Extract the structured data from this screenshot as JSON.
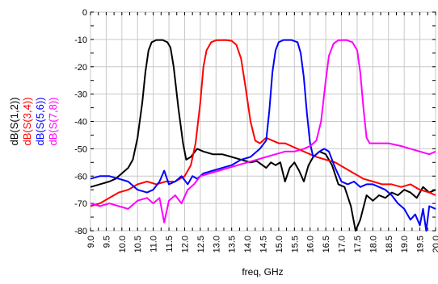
{
  "chart_data": {
    "type": "line",
    "xlabel": "freq, GHz",
    "xlim": [
      9.0,
      20.0
    ],
    "ylim": [
      -80,
      0
    ],
    "grid": true,
    "x_ticks": [
      "9.0",
      "9.5",
      "10.0",
      "10.5",
      "11.0",
      "11.5",
      "12.0",
      "12.5",
      "13.0",
      "13.5",
      "14.0",
      "14.5",
      "15.0",
      "15.5",
      "16.0",
      "16.5",
      "17.0",
      "17.5",
      "18.0",
      "18.5",
      "19.0",
      "19.5",
      "20.0"
    ],
    "y_ticks": [
      "0",
      "-10",
      "-20",
      "-30",
      "-40",
      "-50",
      "-60",
      "-70",
      "-80"
    ],
    "series": [
      {
        "name": "dB(S(1,2))",
        "color": "#000000",
        "points": [
          [
            9.0,
            -64
          ],
          [
            9.3,
            -63
          ],
          [
            9.6,
            -62
          ],
          [
            9.8,
            -61
          ],
          [
            10.0,
            -59
          ],
          [
            10.2,
            -57
          ],
          [
            10.35,
            -54
          ],
          [
            10.5,
            -46
          ],
          [
            10.65,
            -33
          ],
          [
            10.75,
            -22
          ],
          [
            10.85,
            -14
          ],
          [
            10.95,
            -11
          ],
          [
            11.1,
            -10.2
          ],
          [
            11.3,
            -10.2
          ],
          [
            11.45,
            -11
          ],
          [
            11.55,
            -13
          ],
          [
            11.65,
            -20
          ],
          [
            11.8,
            -35
          ],
          [
            11.95,
            -48
          ],
          [
            12.05,
            -54
          ],
          [
            12.2,
            -53
          ],
          [
            12.4,
            -50
          ],
          [
            12.6,
            -51
          ],
          [
            12.9,
            -52
          ],
          [
            13.2,
            -52
          ],
          [
            13.5,
            -53
          ],
          [
            13.8,
            -54
          ],
          [
            14.1,
            -55
          ],
          [
            14.3,
            -54.5
          ],
          [
            14.6,
            -57
          ],
          [
            14.75,
            -55
          ],
          [
            14.9,
            -56
          ],
          [
            15.05,
            -55
          ],
          [
            15.2,
            -62
          ],
          [
            15.35,
            -57
          ],
          [
            15.5,
            -55
          ],
          [
            15.65,
            -58
          ],
          [
            15.8,
            -62
          ],
          [
            15.95,
            -56
          ],
          [
            16.1,
            -53
          ],
          [
            16.3,
            -51
          ],
          [
            16.5,
            -52
          ],
          [
            16.7,
            -56
          ],
          [
            16.9,
            -63
          ],
          [
            17.1,
            -64
          ],
          [
            17.3,
            -71
          ],
          [
            17.45,
            -80
          ],
          [
            17.6,
            -76
          ],
          [
            17.8,
            -67
          ],
          [
            18.0,
            -69
          ],
          [
            18.2,
            -67
          ],
          [
            18.4,
            -68
          ],
          [
            18.6,
            -66
          ],
          [
            18.8,
            -67
          ],
          [
            19.0,
            -65
          ],
          [
            19.2,
            -66
          ],
          [
            19.4,
            -68
          ],
          [
            19.6,
            -64
          ],
          [
            19.8,
            -66
          ],
          [
            20.0,
            -65
          ]
        ]
      },
      {
        "name": "dB(S(3,4))",
        "color": "#ff0000",
        "points": [
          [
            9.0,
            -71
          ],
          [
            9.3,
            -70
          ],
          [
            9.6,
            -68
          ],
          [
            9.9,
            -66
          ],
          [
            10.2,
            -65
          ],
          [
            10.5,
            -63
          ],
          [
            10.8,
            -62
          ],
          [
            11.1,
            -63
          ],
          [
            11.4,
            -62
          ],
          [
            11.7,
            -62
          ],
          [
            12.0,
            -60
          ],
          [
            12.2,
            -56
          ],
          [
            12.35,
            -48
          ],
          [
            12.5,
            -33
          ],
          [
            12.6,
            -20
          ],
          [
            12.7,
            -14
          ],
          [
            12.85,
            -11
          ],
          [
            13.0,
            -10.3
          ],
          [
            13.3,
            -10.2
          ],
          [
            13.5,
            -10.5
          ],
          [
            13.65,
            -12
          ],
          [
            13.8,
            -17
          ],
          [
            13.95,
            -28
          ],
          [
            14.1,
            -40
          ],
          [
            14.25,
            -47
          ],
          [
            14.4,
            -48
          ],
          [
            14.6,
            -46
          ],
          [
            14.8,
            -47
          ],
          [
            15.0,
            -48
          ],
          [
            15.2,
            -48
          ],
          [
            15.4,
            -49
          ],
          [
            15.6,
            -50
          ],
          [
            15.8,
            -51
          ],
          [
            16.0,
            -52
          ],
          [
            16.2,
            -53
          ],
          [
            16.5,
            -54
          ],
          [
            16.8,
            -55
          ],
          [
            17.1,
            -57
          ],
          [
            17.4,
            -59
          ],
          [
            17.7,
            -61
          ],
          [
            18.0,
            -62
          ],
          [
            18.3,
            -63
          ],
          [
            18.6,
            -63
          ],
          [
            18.9,
            -64
          ],
          [
            19.2,
            -63
          ],
          [
            19.5,
            -65
          ],
          [
            19.8,
            -66
          ],
          [
            20.0,
            -67
          ]
        ]
      },
      {
        "name": "dB(S(5,6))",
        "color": "#0000ff",
        "points": [
          [
            9.0,
            -61
          ],
          [
            9.3,
            -60
          ],
          [
            9.6,
            -60
          ],
          [
            9.9,
            -61
          ],
          [
            10.2,
            -62
          ],
          [
            10.5,
            -65
          ],
          [
            10.8,
            -66
          ],
          [
            11.0,
            -65
          ],
          [
            11.2,
            -62
          ],
          [
            11.35,
            -58
          ],
          [
            11.5,
            -63
          ],
          [
            11.7,
            -62
          ],
          [
            11.9,
            -60
          ],
          [
            12.1,
            -63
          ],
          [
            12.25,
            -60
          ],
          [
            12.4,
            -61
          ],
          [
            12.6,
            -59
          ],
          [
            12.9,
            -58
          ],
          [
            13.2,
            -57
          ],
          [
            13.5,
            -56
          ],
          [
            13.8,
            -54
          ],
          [
            14.1,
            -53
          ],
          [
            14.4,
            -50
          ],
          [
            14.6,
            -47
          ],
          [
            14.7,
            -36
          ],
          [
            14.8,
            -22
          ],
          [
            14.9,
            -14
          ],
          [
            15.0,
            -11
          ],
          [
            15.15,
            -10.2
          ],
          [
            15.4,
            -10.2
          ],
          [
            15.6,
            -11
          ],
          [
            15.7,
            -15
          ],
          [
            15.8,
            -24
          ],
          [
            15.9,
            -37
          ],
          [
            16.0,
            -48
          ],
          [
            16.1,
            -53
          ],
          [
            16.3,
            -51
          ],
          [
            16.45,
            -50
          ],
          [
            16.6,
            -51
          ],
          [
            16.8,
            -57
          ],
          [
            17.0,
            -62
          ],
          [
            17.2,
            -63
          ],
          [
            17.4,
            -62
          ],
          [
            17.6,
            -64
          ],
          [
            17.8,
            -63
          ],
          [
            18.0,
            -63
          ],
          [
            18.2,
            -64
          ],
          [
            18.4,
            -65
          ],
          [
            18.6,
            -67
          ],
          [
            18.8,
            -70
          ],
          [
            19.0,
            -72
          ],
          [
            19.2,
            -76
          ],
          [
            19.35,
            -74
          ],
          [
            19.5,
            -78
          ],
          [
            19.6,
            -72
          ],
          [
            19.7,
            -80
          ],
          [
            19.8,
            -71
          ],
          [
            20.0,
            -72
          ]
        ]
      },
      {
        "name": "dB(S(7,8))",
        "color": "#ff00ff",
        "points": [
          [
            9.0,
            -70
          ],
          [
            9.3,
            -71
          ],
          [
            9.6,
            -70
          ],
          [
            9.9,
            -71
          ],
          [
            10.2,
            -72
          ],
          [
            10.5,
            -69
          ],
          [
            10.8,
            -68
          ],
          [
            11.0,
            -70
          ],
          [
            11.2,
            -68
          ],
          [
            11.35,
            -77
          ],
          [
            11.5,
            -69
          ],
          [
            11.7,
            -67
          ],
          [
            11.9,
            -70
          ],
          [
            12.1,
            -65
          ],
          [
            12.3,
            -63
          ],
          [
            12.5,
            -60
          ],
          [
            12.8,
            -59
          ],
          [
            13.1,
            -58
          ],
          [
            13.4,
            -57
          ],
          [
            13.7,
            -56
          ],
          [
            14.0,
            -55
          ],
          [
            14.3,
            -54
          ],
          [
            14.6,
            -53
          ],
          [
            14.9,
            -52
          ],
          [
            15.2,
            -51
          ],
          [
            15.5,
            -51
          ],
          [
            15.8,
            -50
          ],
          [
            16.0,
            -49
          ],
          [
            16.2,
            -47
          ],
          [
            16.35,
            -40
          ],
          [
            16.5,
            -25
          ],
          [
            16.6,
            -16
          ],
          [
            16.75,
            -11.5
          ],
          [
            16.9,
            -10.3
          ],
          [
            17.15,
            -10.2
          ],
          [
            17.35,
            -11
          ],
          [
            17.5,
            -14
          ],
          [
            17.6,
            -22
          ],
          [
            17.7,
            -35
          ],
          [
            17.8,
            -46
          ],
          [
            17.9,
            -48
          ],
          [
            18.1,
            -48
          ],
          [
            18.5,
            -48
          ],
          [
            18.9,
            -49
          ],
          [
            19.2,
            -50
          ],
          [
            19.5,
            -51
          ],
          [
            19.8,
            -52
          ],
          [
            20.0,
            -51
          ]
        ]
      }
    ]
  }
}
